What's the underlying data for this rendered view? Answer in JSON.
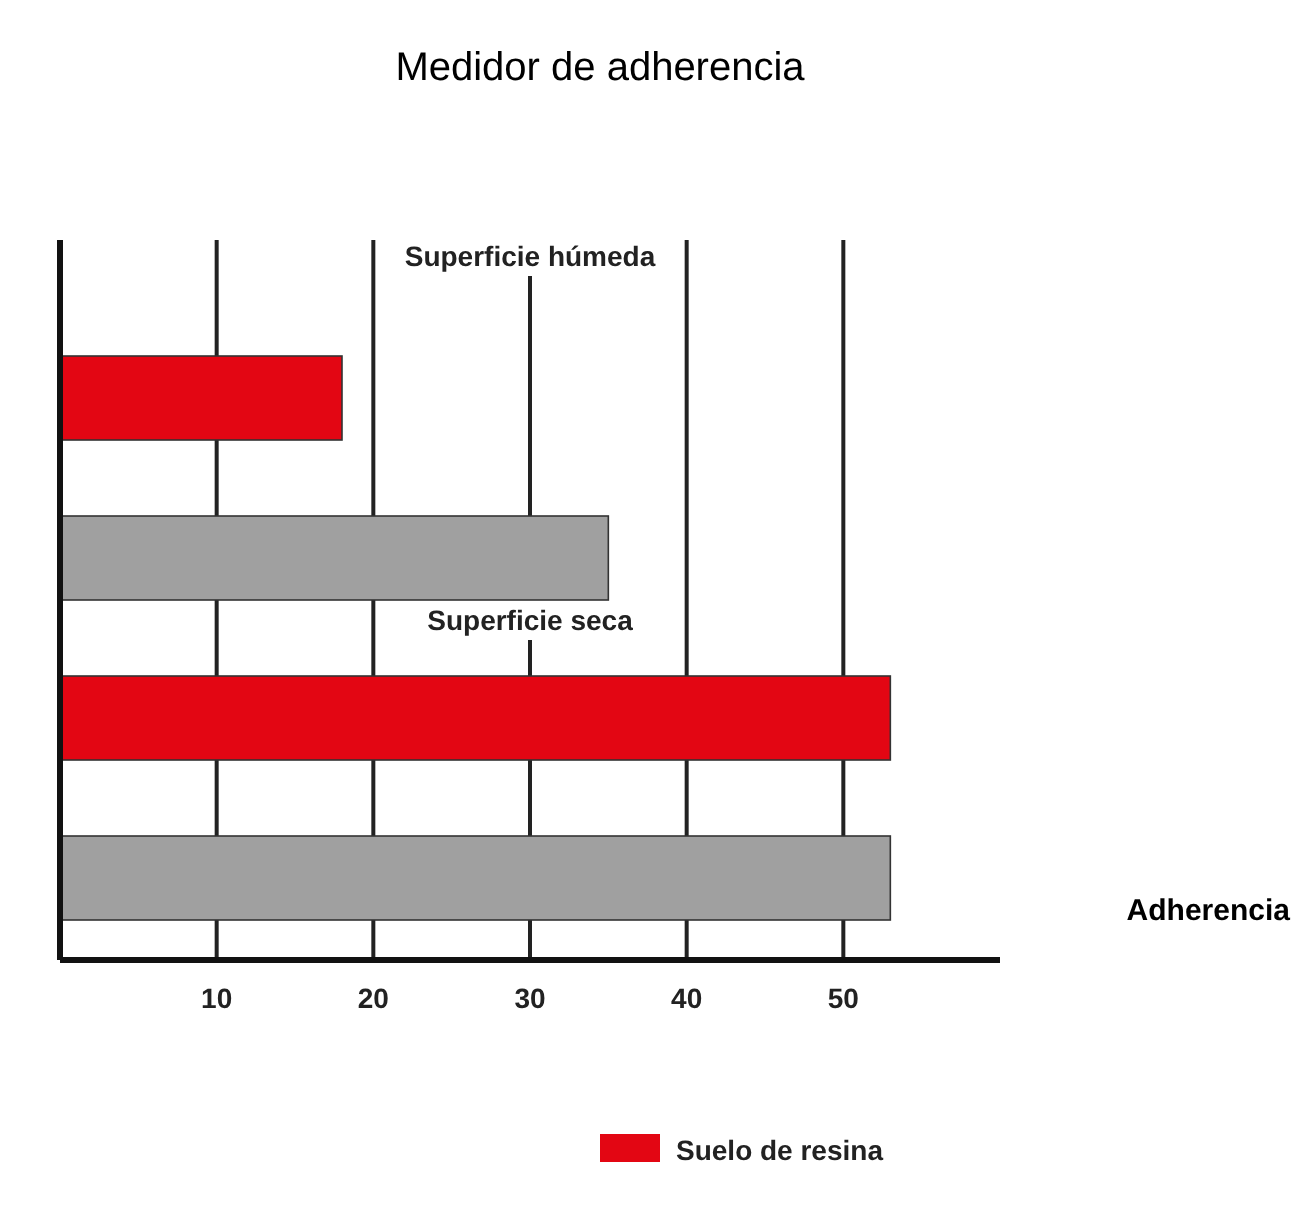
{
  "chart_data": {
    "type": "bar",
    "orientation": "horizontal",
    "title": "Medidor de adherencia",
    "xlabel": "Adherencia",
    "categories": [
      null,
      null,
      null,
      null
    ],
    "series": [
      {
        "name": "Suelo de resina",
        "color": "#e30613",
        "values": [
          18,
          null,
          53,
          null
        ]
      },
      {
        "color": "#a0a0a0",
        "values": [
          null,
          35,
          null,
          53
        ]
      }
    ],
    "xlim": [
      0,
      60
    ],
    "xticks": [
      10,
      20,
      30,
      40,
      50
    ],
    "grid": "x",
    "legend": "bottom",
    "annotations": [
      "Superficie húmeda",
      "Superficie seca"
    ]
  }
}
